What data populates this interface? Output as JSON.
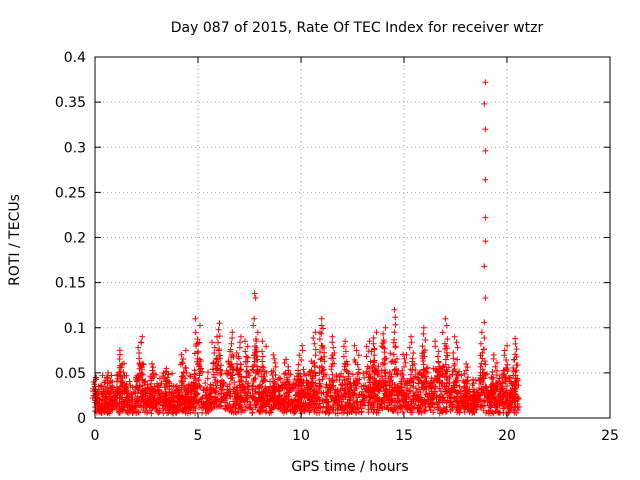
{
  "chart_data": {
    "type": "scatter",
    "title": "Day 087 of 2015, Rate Of TEC Index for receiver wtzr",
    "xlabel": "GPS time / hours",
    "ylabel": "ROTI / TECUs",
    "xlim": [
      0,
      25
    ],
    "ylim": [
      0,
      0.4
    ],
    "xticks": [
      0,
      5,
      10,
      15,
      20,
      25
    ],
    "xtick_labels": [
      "0",
      "5",
      "10",
      "15",
      "20",
      "25"
    ],
    "yticks": [
      0,
      0.05,
      0.1,
      0.15,
      0.2,
      0.25,
      0.3,
      0.35,
      0.4
    ],
    "ytick_labels": [
      "0",
      "0.05",
      "0.1",
      "0.15",
      "0.2",
      "0.25",
      "0.3",
      "0.35",
      "0.4"
    ],
    "grid": true,
    "marker": "+",
    "color": "#ff0000",
    "bulk": {
      "x_range": [
        0,
        20.6
      ],
      "y_floor": 0.005,
      "baseline": 0.012,
      "spread": 0.035
    },
    "bursts": [
      {
        "x": 0.0,
        "peak": 0.045
      },
      {
        "x": 0.7,
        "peak": 0.05
      },
      {
        "x": 1.3,
        "peak": 0.075
      },
      {
        "x": 2.2,
        "peak": 0.09
      },
      {
        "x": 2.8,
        "peak": 0.06
      },
      {
        "x": 3.5,
        "peak": 0.055
      },
      {
        "x": 4.3,
        "peak": 0.075
      },
      {
        "x": 5.0,
        "peak": 0.11
      },
      {
        "x": 5.8,
        "peak": 0.09
      },
      {
        "x": 6.0,
        "peak": 0.105
      },
      {
        "x": 6.6,
        "peak": 0.095
      },
      {
        "x": 7.0,
        "peak": 0.09
      },
      {
        "x": 7.4,
        "peak": 0.085
      },
      {
        "x": 7.8,
        "peak": 0.11
      },
      {
        "x": 8.2,
        "peak": 0.085
      },
      {
        "x": 8.7,
        "peak": 0.07
      },
      {
        "x": 9.3,
        "peak": 0.065
      },
      {
        "x": 10.0,
        "peak": 0.08
      },
      {
        "x": 10.6,
        "peak": 0.095
      },
      {
        "x": 11.0,
        "peak": 0.11
      },
      {
        "x": 11.5,
        "peak": 0.09
      },
      {
        "x": 12.2,
        "peak": 0.085
      },
      {
        "x": 12.7,
        "peak": 0.08
      },
      {
        "x": 13.3,
        "peak": 0.085
      },
      {
        "x": 13.6,
        "peak": 0.095
      },
      {
        "x": 14.0,
        "peak": 0.1
      },
      {
        "x": 14.5,
        "peak": 0.12
      },
      {
        "x": 15.0,
        "peak": 0.07
      },
      {
        "x": 15.4,
        "peak": 0.09
      },
      {
        "x": 16.0,
        "peak": 0.1
      },
      {
        "x": 16.6,
        "peak": 0.085
      },
      {
        "x": 17.0,
        "peak": 0.11
      },
      {
        "x": 17.5,
        "peak": 0.09
      },
      {
        "x": 18.0,
        "peak": 0.06
      },
      {
        "x": 18.8,
        "peak": 0.095
      },
      {
        "x": 19.4,
        "peak": 0.07
      },
      {
        "x": 19.9,
        "peak": 0.08
      },
      {
        "x": 20.4,
        "peak": 0.088
      }
    ],
    "outliers": [
      {
        "x": 7.75,
        "y": 0.138
      },
      {
        "x": 7.8,
        "y": 0.133
      },
      {
        "x": 18.95,
        "y": 0.372
      },
      {
        "x": 18.9,
        "y": 0.348
      },
      {
        "x": 18.95,
        "y": 0.32
      },
      {
        "x": 18.95,
        "y": 0.296
      },
      {
        "x": 18.95,
        "y": 0.264
      },
      {
        "x": 18.95,
        "y": 0.222
      },
      {
        "x": 18.95,
        "y": 0.196
      },
      {
        "x": 18.9,
        "y": 0.168
      },
      {
        "x": 18.95,
        "y": 0.133
      },
      {
        "x": 18.9,
        "y": 0.106
      }
    ]
  }
}
